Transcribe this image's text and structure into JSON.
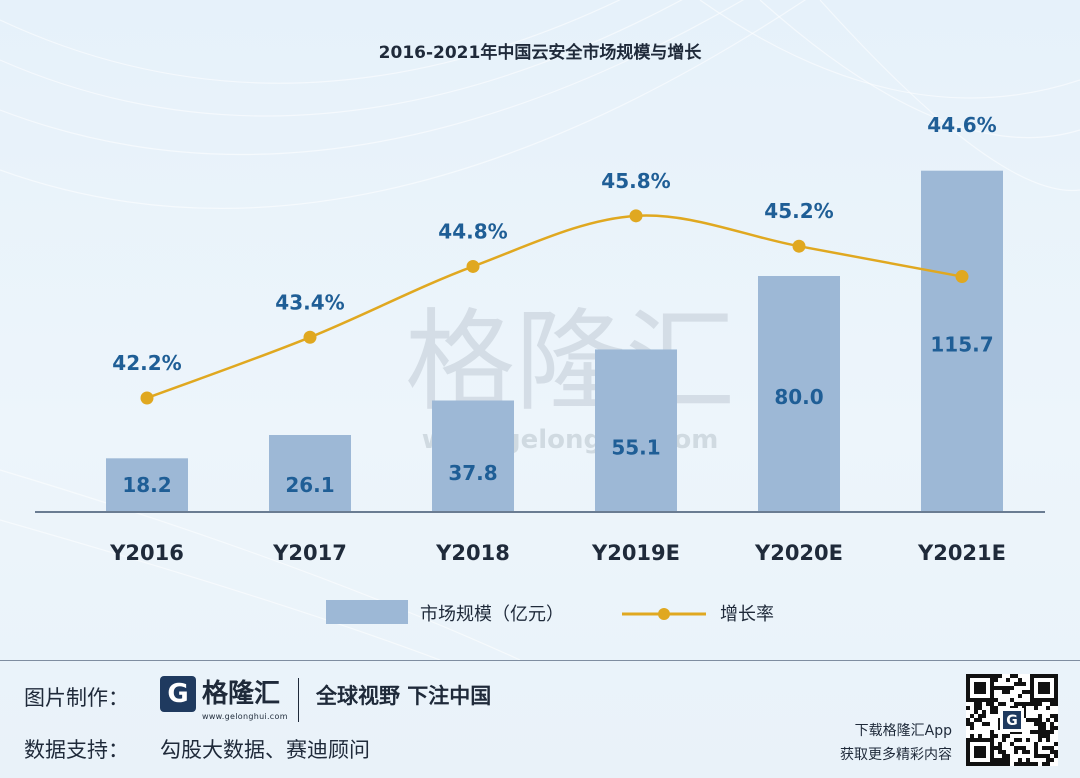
{
  "chart_data": {
    "type": "bar",
    "title": "2016-2021年中国云安全市场规模与增长",
    "categories": [
      "Y2016",
      "Y2017",
      "Y2018",
      "Y2019E",
      "Y2020E",
      "Y2021E"
    ],
    "series": [
      {
        "name": "市场规模（亿元）",
        "type": "bar",
        "values": [
          18.2,
          26.1,
          37.8,
          55.1,
          80.0,
          115.7
        ],
        "labels": [
          "18.2",
          "26.1",
          "37.8",
          "55.1",
          "80.0",
          "115.7"
        ],
        "color": "#9db8d6"
      },
      {
        "name": "增长率",
        "type": "line",
        "values": [
          42.2,
          43.4,
          44.8,
          45.8,
          45.2,
          44.6
        ],
        "labels": [
          "42.2%",
          "43.4%",
          "44.8%",
          "45.8%",
          "45.2%",
          "44.6%"
        ],
        "color": "#e0a820"
      }
    ],
    "legend_position": "bottom",
    "grid": false
  },
  "watermark": {
    "text": "格隆汇",
    "url": "www.gelonghui.com"
  },
  "footer": {
    "credit_label": "图片制作：",
    "logo_mark": "G",
    "logo_name": "格隆汇",
    "logo_url": "www.gelonghui.com",
    "slogan": "全球视野 下注中国",
    "source_label": "数据支持：",
    "source_value": "勾股大数据、赛迪顾问",
    "download_line1": "下载格隆汇App",
    "download_line2": "获取更多精彩内容"
  },
  "colors": {
    "label_blue": "#1f5e96",
    "axis": "#6a7c92",
    "text_dark": "#1f2a3a"
  }
}
